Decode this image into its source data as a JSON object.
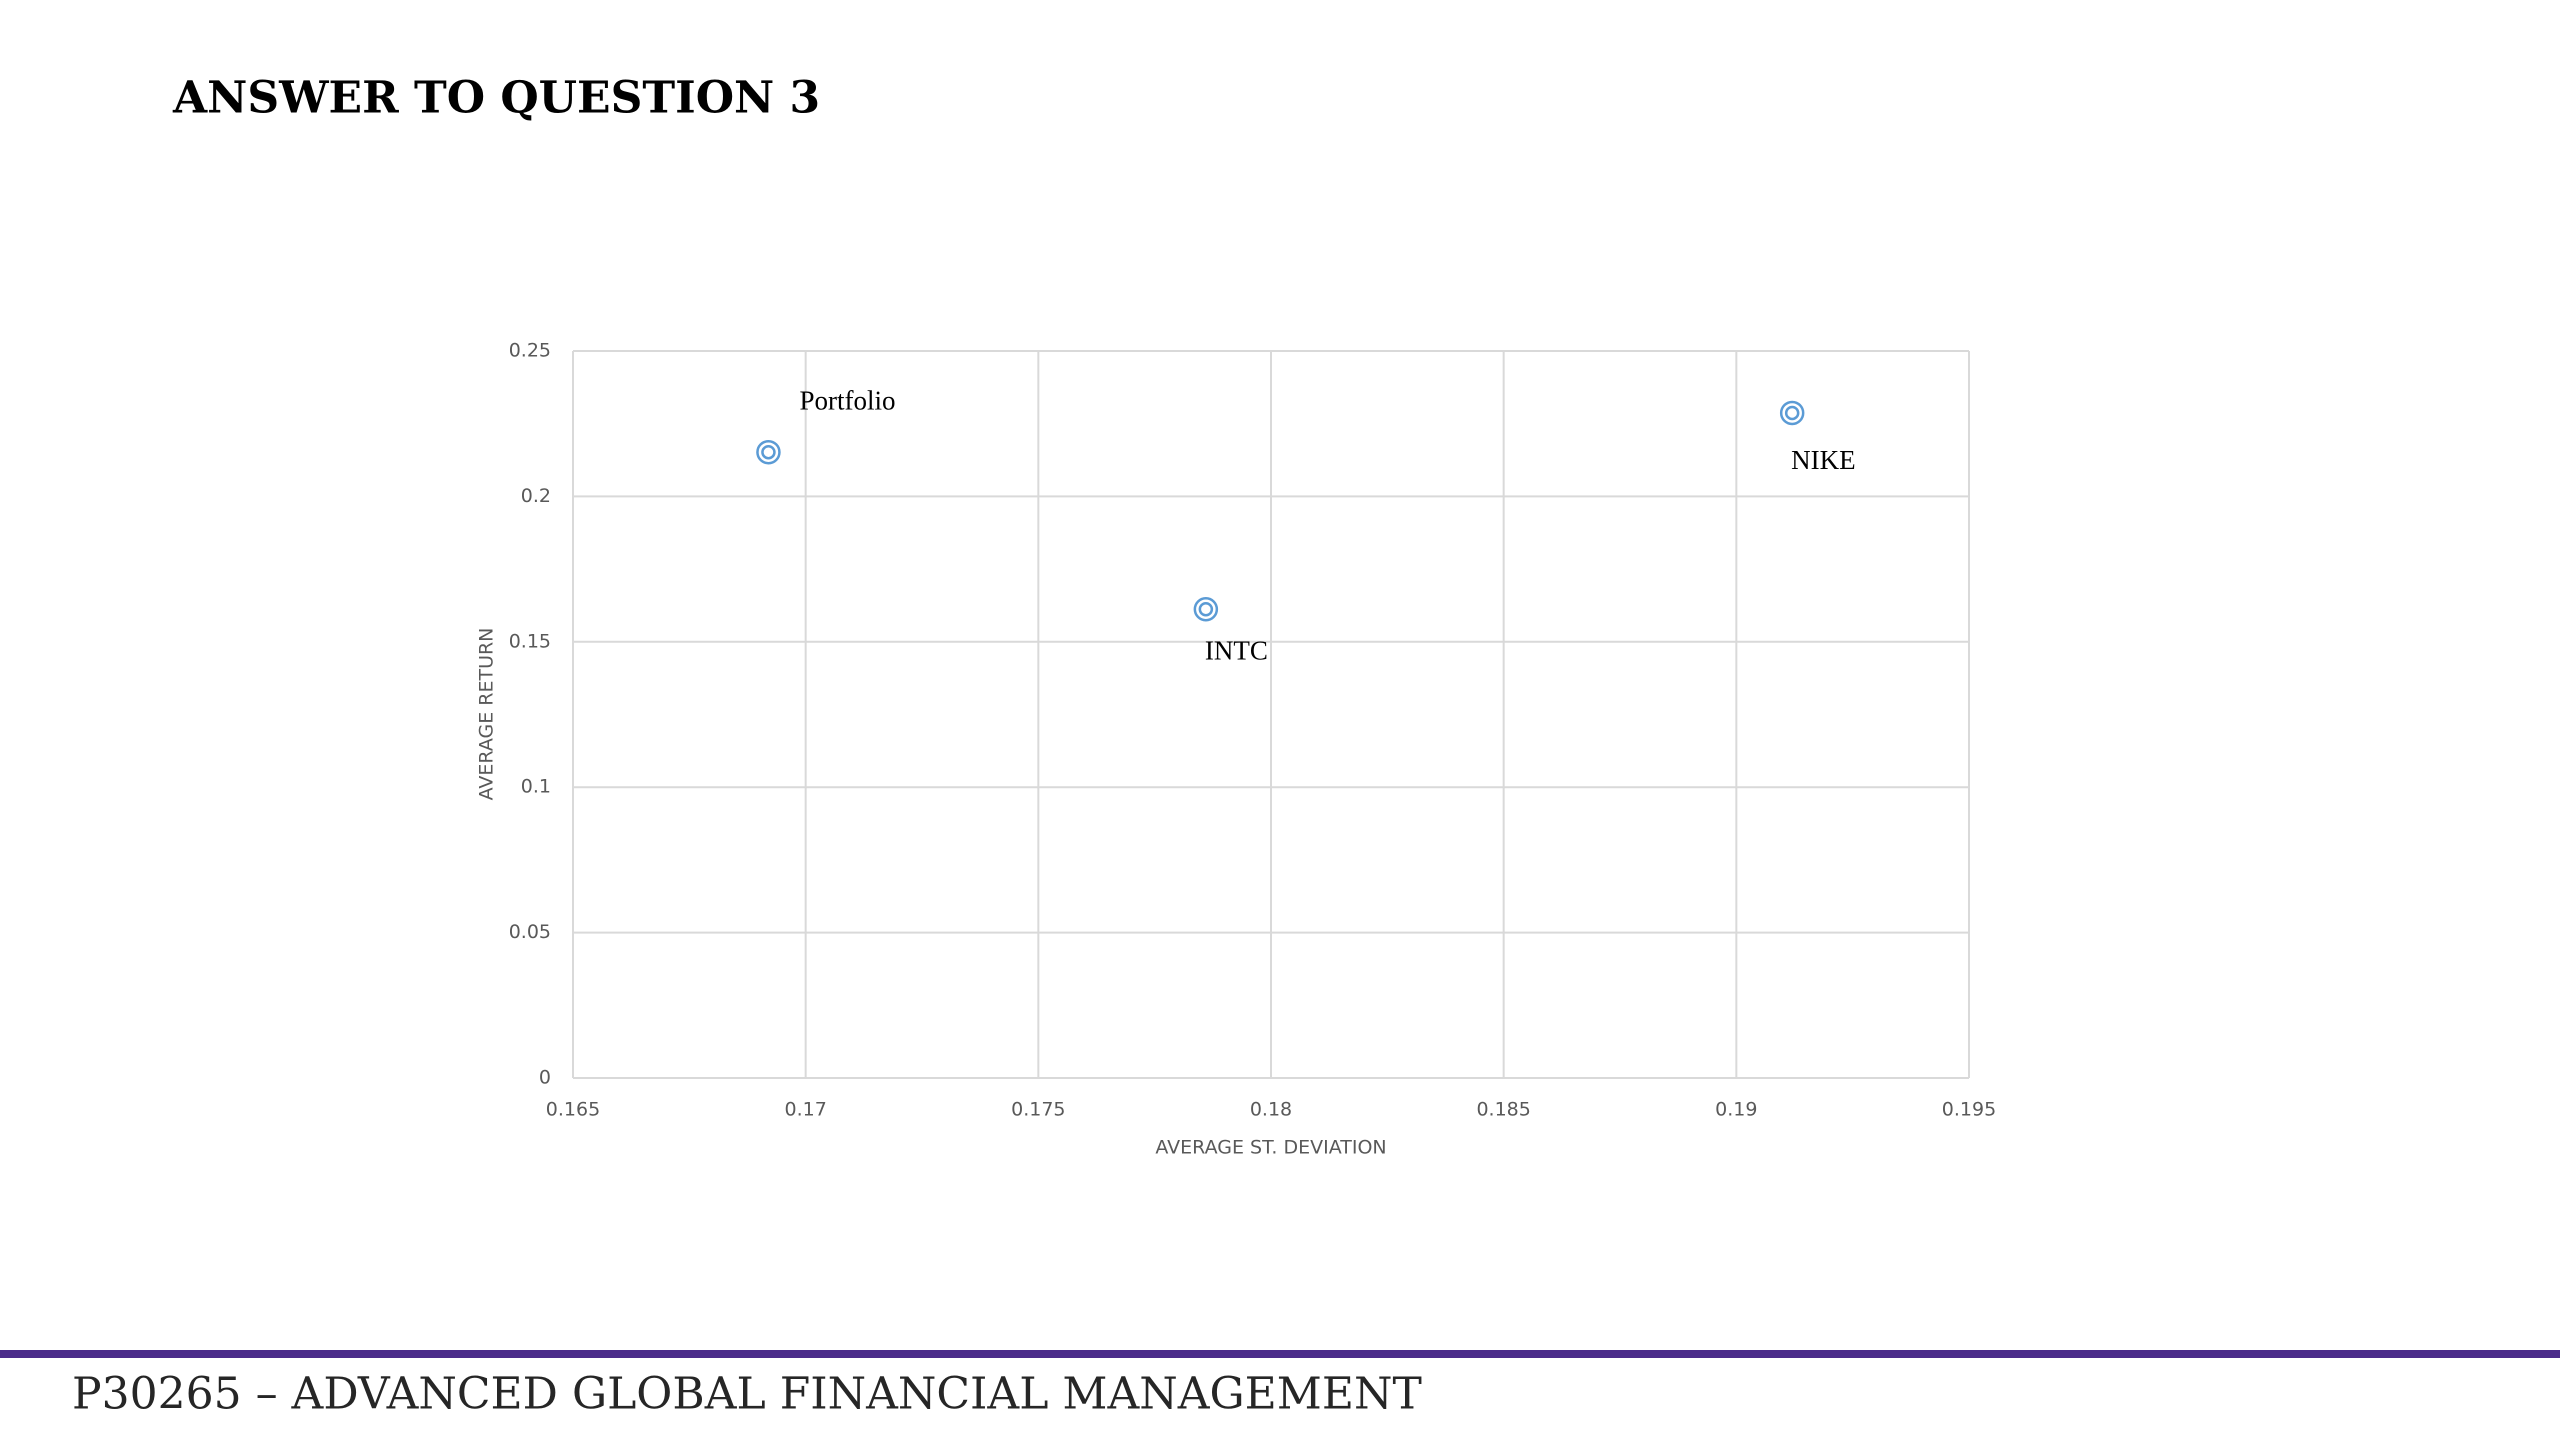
{
  "title": "ANSWER TO QUESTION 3",
  "footer": "P30265 – ADVANCED GLOBAL FINANCIAL MANAGEMENT",
  "chart_data": {
    "type": "scatter",
    "xlabel": "AVERAGE ST. DEVIATION",
    "ylabel": "AVERAGE RETURN",
    "series": [
      {
        "color": "#5b9bd5",
        "x": [
          0.1692,
          0.1786,
          0.1912
        ],
        "values": [
          0.2152,
          0.1612,
          0.2287
        ],
        "labels": [
          "Portfolio",
          "INTC",
          "NIKE"
        ]
      }
    ],
    "xlim": [
      0.165,
      0.195
    ],
    "xticks": [
      0.165,
      0.17,
      0.175,
      0.18,
      0.185,
      0.19,
      0.195
    ],
    "ylim": [
      0,
      0.25
    ],
    "yticks": [
      0,
      0.05,
      0.1,
      0.15,
      0.2,
      0.25
    ],
    "grid": true
  }
}
